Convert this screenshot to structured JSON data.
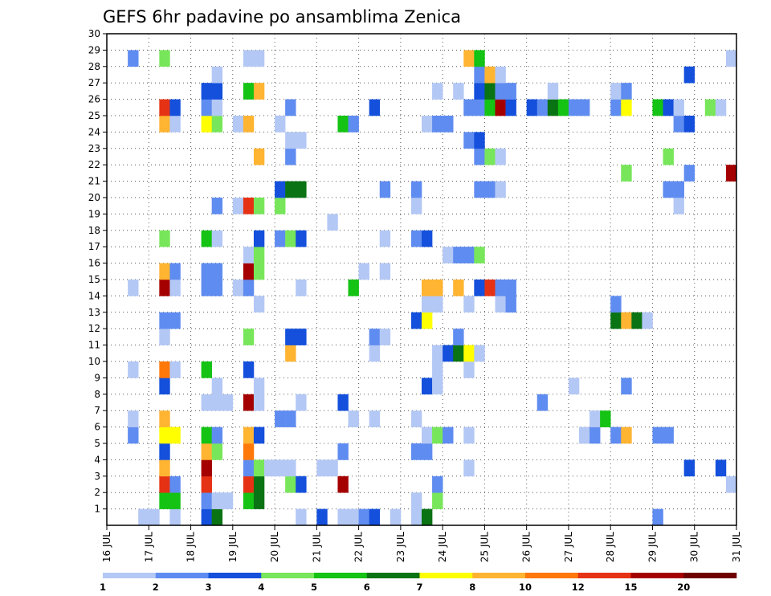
{
  "chart_data": {
    "type": "heatmap",
    "title": "GEFS 6hr padavine po ansamblima Zenica",
    "x_axis": {
      "unit": "6-hour step",
      "range": [
        0,
        60
      ],
      "tick_labels": [
        "16 JUL",
        "17 JUL",
        "18 JUL",
        "19 JUL",
        "20 JUL",
        "21 JUL",
        "22 JUL",
        "23 JUL",
        "24 JUL",
        "25 JUL",
        "26 JUL",
        "27 JUL",
        "28 JUL",
        "29 JUL",
        "30 JUL",
        "31 JUL"
      ]
    },
    "y_axis": {
      "unit": "ensemble member",
      "range": [
        0,
        30
      ],
      "tick_labels": [
        "1",
        "2",
        "3",
        "4",
        "5",
        "6",
        "7",
        "8",
        "9",
        "10",
        "11",
        "12",
        "13",
        "14",
        "15",
        "16",
        "17",
        "18",
        "19",
        "20",
        "21",
        "22",
        "23",
        "24",
        "25",
        "26",
        "27",
        "28",
        "29",
        "30"
      ]
    },
    "grid": "dotted",
    "colorbar": {
      "position": "bottom",
      "labels": [
        "1",
        "2",
        "3",
        "4",
        "5",
        "6",
        "7",
        "8",
        "10",
        "12",
        "15",
        "20"
      ],
      "colors": [
        "#b4c8f5",
        "#5f8cf0",
        "#1450dc",
        "#78e65a",
        "#14c314",
        "#0a7314",
        "#ffff00",
        "#ffb432",
        "#ff780a",
        "#e63214",
        "#a50000",
        "#6e0000"
      ]
    },
    "cells": [
      [
        4,
        1,
        1
      ],
      [
        5,
        1,
        1
      ],
      [
        7,
        1,
        1
      ],
      [
        10,
        1,
        3
      ],
      [
        11,
        1,
        6
      ],
      [
        19,
        1,
        1
      ],
      [
        21,
        1,
        3
      ],
      [
        23,
        1,
        1
      ],
      [
        24,
        1,
        1
      ],
      [
        25,
        1,
        2
      ],
      [
        26,
        1,
        3
      ],
      [
        28,
        1,
        1
      ],
      [
        30,
        1,
        1
      ],
      [
        31,
        1,
        6
      ],
      [
        53,
        1,
        2
      ],
      [
        6,
        2,
        5
      ],
      [
        7,
        2,
        5
      ],
      [
        10,
        2,
        2
      ],
      [
        11,
        2,
        1
      ],
      [
        12,
        2,
        1
      ],
      [
        14,
        2,
        5
      ],
      [
        15,
        2,
        6
      ],
      [
        30,
        2,
        1
      ],
      [
        32,
        2,
        4
      ],
      [
        6,
        3,
        10
      ],
      [
        7,
        3,
        2
      ],
      [
        10,
        3,
        10
      ],
      [
        14,
        3,
        10
      ],
      [
        15,
        3,
        6
      ],
      [
        18,
        3,
        4
      ],
      [
        19,
        3,
        3
      ],
      [
        23,
        3,
        11
      ],
      [
        32,
        3,
        2
      ],
      [
        60,
        3,
        1
      ],
      [
        6,
        4,
        8
      ],
      [
        10,
        4,
        11
      ],
      [
        14,
        4,
        2
      ],
      [
        15,
        4,
        4
      ],
      [
        16,
        4,
        1
      ],
      [
        17,
        4,
        1
      ],
      [
        18,
        4,
        1
      ],
      [
        21,
        4,
        1
      ],
      [
        22,
        4,
        1
      ],
      [
        35,
        4,
        1
      ],
      [
        56,
        4,
        3
      ],
      [
        59,
        4,
        3
      ],
      [
        6,
        5,
        3
      ],
      [
        10,
        5,
        8
      ],
      [
        11,
        5,
        4
      ],
      [
        14,
        5,
        9
      ],
      [
        23,
        5,
        2
      ],
      [
        30,
        5,
        2
      ],
      [
        31,
        5,
        2
      ],
      [
        3,
        6,
        2
      ],
      [
        6,
        6,
        7
      ],
      [
        7,
        6,
        7
      ],
      [
        10,
        6,
        5
      ],
      [
        11,
        6,
        2
      ],
      [
        14,
        6,
        8
      ],
      [
        15,
        6,
        3
      ],
      [
        31,
        6,
        1
      ],
      [
        32,
        6,
        4
      ],
      [
        33,
        6,
        2
      ],
      [
        35,
        6,
        1
      ],
      [
        46,
        6,
        1
      ],
      [
        47,
        6,
        2
      ],
      [
        49,
        6,
        2
      ],
      [
        50,
        6,
        8
      ],
      [
        53,
        6,
        2
      ],
      [
        54,
        6,
        2
      ],
      [
        3,
        7,
        1
      ],
      [
        6,
        7,
        8
      ],
      [
        17,
        7,
        2
      ],
      [
        18,
        7,
        2
      ],
      [
        24,
        7,
        1
      ],
      [
        26,
        7,
        1
      ],
      [
        30,
        7,
        1
      ],
      [
        47,
        7,
        1
      ],
      [
        48,
        7,
        5
      ],
      [
        10,
        8,
        1
      ],
      [
        11,
        8,
        1
      ],
      [
        12,
        8,
        1
      ],
      [
        14,
        8,
        11
      ],
      [
        15,
        8,
        1
      ],
      [
        19,
        8,
        1
      ],
      [
        23,
        8,
        3
      ],
      [
        42,
        8,
        2
      ],
      [
        6,
        9,
        3
      ],
      [
        11,
        9,
        1
      ],
      [
        15,
        9,
        1
      ],
      [
        31,
        9,
        3
      ],
      [
        32,
        9,
        1
      ],
      [
        45,
        9,
        1
      ],
      [
        50,
        9,
        2
      ],
      [
        3,
        10,
        1
      ],
      [
        6,
        10,
        9
      ],
      [
        7,
        10,
        1
      ],
      [
        10,
        10,
        5
      ],
      [
        14,
        10,
        3
      ],
      [
        32,
        10,
        1
      ],
      [
        35,
        10,
        1
      ],
      [
        18,
        11,
        8
      ],
      [
        26,
        11,
        1
      ],
      [
        32,
        11,
        1
      ],
      [
        33,
        11,
        3
      ],
      [
        34,
        11,
        6
      ],
      [
        35,
        11,
        7
      ],
      [
        36,
        11,
        1
      ],
      [
        6,
        12,
        1
      ],
      [
        14,
        12,
        4
      ],
      [
        18,
        12,
        3
      ],
      [
        19,
        12,
        3
      ],
      [
        26,
        12,
        2
      ],
      [
        27,
        12,
        1
      ],
      [
        34,
        12,
        2
      ],
      [
        6,
        13,
        2
      ],
      [
        7,
        13,
        2
      ],
      [
        30,
        13,
        3
      ],
      [
        31,
        13,
        7
      ],
      [
        49,
        13,
        6
      ],
      [
        50,
        13,
        8
      ],
      [
        51,
        13,
        6
      ],
      [
        52,
        13,
        1
      ],
      [
        15,
        14,
        1
      ],
      [
        31,
        14,
        1
      ],
      [
        32,
        14,
        1
      ],
      [
        35,
        14,
        1
      ],
      [
        38,
        14,
        1
      ],
      [
        39,
        14,
        2
      ],
      [
        49,
        14,
        2
      ],
      [
        3,
        15,
        1
      ],
      [
        6,
        15,
        11
      ],
      [
        7,
        15,
        1
      ],
      [
        10,
        15,
        2
      ],
      [
        11,
        15,
        2
      ],
      [
        13,
        15,
        1
      ],
      [
        14,
        15,
        2
      ],
      [
        19,
        15,
        1
      ],
      [
        24,
        15,
        5
      ],
      [
        31,
        15,
        8
      ],
      [
        32,
        15,
        8
      ],
      [
        34,
        15,
        8
      ],
      [
        36,
        15,
        3
      ],
      [
        37,
        15,
        10
      ],
      [
        38,
        15,
        2
      ],
      [
        39,
        15,
        2
      ],
      [
        6,
        16,
        8
      ],
      [
        7,
        16,
        2
      ],
      [
        10,
        16,
        2
      ],
      [
        11,
        16,
        2
      ],
      [
        14,
        16,
        11
      ],
      [
        15,
        16,
        4
      ],
      [
        25,
        16,
        1
      ],
      [
        27,
        16,
        1
      ],
      [
        14,
        17,
        1
      ],
      [
        15,
        17,
        4
      ],
      [
        33,
        17,
        1
      ],
      [
        34,
        17,
        2
      ],
      [
        35,
        17,
        2
      ],
      [
        36,
        17,
        4
      ],
      [
        6,
        18,
        4
      ],
      [
        10,
        18,
        5
      ],
      [
        11,
        18,
        1
      ],
      [
        15,
        18,
        3
      ],
      [
        17,
        18,
        2
      ],
      [
        18,
        18,
        4
      ],
      [
        19,
        18,
        3
      ],
      [
        27,
        18,
        1
      ],
      [
        30,
        18,
        2
      ],
      [
        31,
        18,
        3
      ],
      [
        22,
        19,
        1
      ],
      [
        11,
        20,
        2
      ],
      [
        13,
        20,
        1
      ],
      [
        14,
        20,
        10
      ],
      [
        15,
        20,
        4
      ],
      [
        17,
        20,
        4
      ],
      [
        30,
        20,
        1
      ],
      [
        55,
        20,
        1
      ],
      [
        17,
        21,
        3
      ],
      [
        18,
        21,
        6
      ],
      [
        19,
        21,
        6
      ],
      [
        27,
        21,
        2
      ],
      [
        30,
        21,
        2
      ],
      [
        36,
        21,
        2
      ],
      [
        37,
        21,
        2
      ],
      [
        38,
        21,
        1
      ],
      [
        54,
        21,
        2
      ],
      [
        55,
        21,
        2
      ],
      [
        50,
        22,
        4
      ],
      [
        56,
        22,
        2
      ],
      [
        60,
        22,
        11
      ],
      [
        15,
        23,
        8
      ],
      [
        18,
        23,
        2
      ],
      [
        36,
        23,
        2
      ],
      [
        37,
        23,
        4
      ],
      [
        38,
        23,
        1
      ],
      [
        54,
        23,
        4
      ],
      [
        18,
        24,
        1
      ],
      [
        19,
        24,
        1
      ],
      [
        35,
        24,
        2
      ],
      [
        36,
        24,
        3
      ],
      [
        6,
        25,
        8
      ],
      [
        7,
        25,
        1
      ],
      [
        10,
        25,
        7
      ],
      [
        11,
        25,
        4
      ],
      [
        13,
        25,
        1
      ],
      [
        14,
        25,
        8
      ],
      [
        17,
        25,
        1
      ],
      [
        23,
        25,
        5
      ],
      [
        24,
        25,
        2
      ],
      [
        31,
        25,
        1
      ],
      [
        32,
        25,
        2
      ],
      [
        33,
        25,
        2
      ],
      [
        55,
        25,
        2
      ],
      [
        56,
        25,
        3
      ],
      [
        6,
        26,
        10
      ],
      [
        7,
        26,
        3
      ],
      [
        10,
        26,
        2
      ],
      [
        11,
        26,
        1
      ],
      [
        18,
        26,
        2
      ],
      [
        26,
        26,
        3
      ],
      [
        35,
        26,
        2
      ],
      [
        36,
        26,
        2
      ],
      [
        37,
        26,
        5
      ],
      [
        38,
        26,
        11
      ],
      [
        39,
        26,
        3
      ],
      [
        41,
        26,
        3
      ],
      [
        42,
        26,
        2
      ],
      [
        43,
        26,
        6
      ],
      [
        44,
        26,
        5
      ],
      [
        45,
        26,
        2
      ],
      [
        46,
        26,
        2
      ],
      [
        49,
        26,
        2
      ],
      [
        50,
        26,
        7
      ],
      [
        53,
        26,
        5
      ],
      [
        54,
        26,
        3
      ],
      [
        55,
        26,
        1
      ],
      [
        58,
        26,
        4
      ],
      [
        59,
        26,
        1
      ],
      [
        10,
        27,
        3
      ],
      [
        11,
        27,
        3
      ],
      [
        14,
        27,
        5
      ],
      [
        15,
        27,
        8
      ],
      [
        32,
        27,
        1
      ],
      [
        34,
        27,
        1
      ],
      [
        36,
        27,
        3
      ],
      [
        37,
        27,
        6
      ],
      [
        38,
        27,
        2
      ],
      [
        39,
        27,
        2
      ],
      [
        43,
        27,
        1
      ],
      [
        49,
        27,
        1
      ],
      [
        50,
        27,
        2
      ],
      [
        11,
        28,
        1
      ],
      [
        36,
        28,
        2
      ],
      [
        37,
        28,
        8
      ],
      [
        38,
        28,
        1
      ],
      [
        56,
        28,
        3
      ],
      [
        3,
        29,
        2
      ],
      [
        6,
        29,
        4
      ],
      [
        14,
        29,
        1
      ],
      [
        15,
        29,
        1
      ],
      [
        35,
        29,
        8
      ],
      [
        36,
        29,
        5
      ],
      [
        60,
        29,
        1
      ]
    ]
  }
}
